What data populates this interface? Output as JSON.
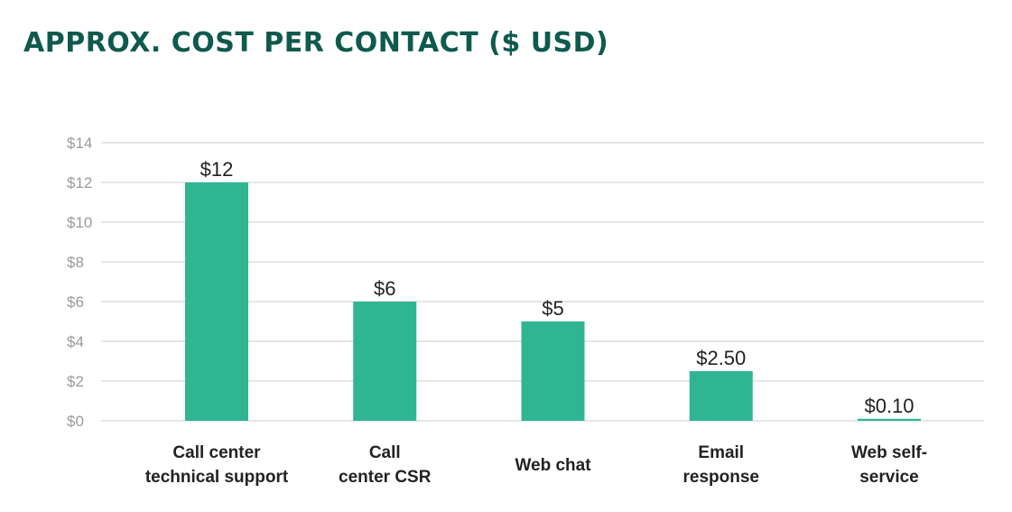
{
  "chart_data": {
    "type": "bar",
    "title": "APPROX. COST PER CONTACT ($ USD)",
    "categories": [
      [
        "Call center",
        "technical support"
      ],
      [
        "Call",
        "center CSR"
      ],
      [
        "Web chat"
      ],
      [
        "Email",
        "response"
      ],
      [
        "Web self-",
        "service"
      ]
    ],
    "values": [
      12,
      6,
      5,
      2.5,
      0.1
    ],
    "value_labels": [
      "$12",
      "$6",
      "$5",
      "$2.50",
      "$0.10"
    ],
    "ylim": [
      0,
      14
    ],
    "y_ticks": [
      0,
      2,
      4,
      6,
      8,
      10,
      12,
      14
    ],
    "y_tick_labels": [
      "$0",
      "$2",
      "$4",
      "$6",
      "$8",
      "$10",
      "$12",
      "$14"
    ],
    "xlabel": "",
    "ylabel": "",
    "grid": true,
    "colors": {
      "bar": "#2fb592",
      "grid": "#cccccc",
      "title": "#0f5a4e",
      "tick": "#9a9a9a",
      "label": "#222222"
    }
  }
}
